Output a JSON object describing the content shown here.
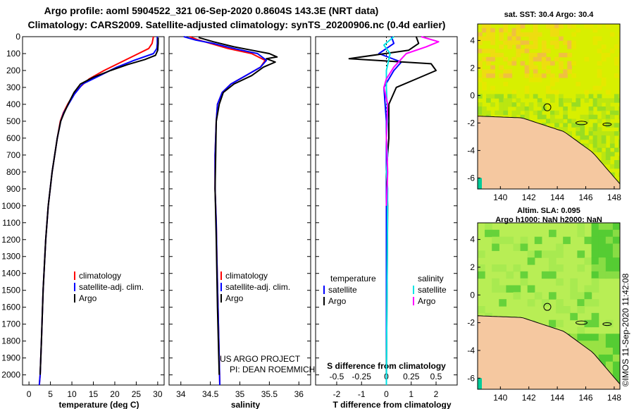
{
  "header": {
    "title_line1": "Argo profile: aoml 5904522_321 06-Sep-2020 0.8604S 143.3E (NRT data)",
    "title_line2": "Climatology: CARS2009. Satellite-adjusted climatology: synTS_20200906.nc (0.4d earlier)"
  },
  "colors": {
    "climatology": "#ff0000",
    "satellite": "#0000ff",
    "argo": "#000000",
    "salinity_satellite": "#00e5e5",
    "salinity_argo": "#ff00ff",
    "land": "#f5c8a0",
    "sea_warm": "#d8ef00",
    "sea_green": "#55cc33",
    "sea_cyan": "#00cc99"
  },
  "credits": {
    "line1": "US ARGO PROJECT",
    "line2": "PI: DEAN ROEMMICH",
    "imos": "©IMOS 11-Sep-2020 11:42:08"
  },
  "chart_data": [
    {
      "type": "line",
      "id": "temperature",
      "xlabel": "temperature (deg C)",
      "ylabel": "",
      "xlim": [
        -1.5,
        31.5
      ],
      "ylim": [
        2060,
        0
      ],
      "xticks": [
        0,
        5,
        10,
        15,
        20,
        25,
        30
      ],
      "xticklabels": [
        "0",
        "5",
        "10",
        "15",
        "20",
        "25",
        "30"
      ],
      "yticks": [
        0,
        100,
        200,
        300,
        400,
        500,
        600,
        700,
        800,
        900,
        1000,
        1100,
        1200,
        1300,
        1400,
        1500,
        1600,
        1700,
        1800,
        1900,
        2000
      ],
      "legend": [
        "climatology",
        "satellite-adj. clim.",
        "Argo"
      ],
      "legend_loc": "lower-right",
      "series": [
        {
          "name": "climatology",
          "color_key": "climatology",
          "x": [
            29.0,
            28.7,
            27.9,
            25.5,
            21.5,
            17.5,
            14.0,
            11.8,
            10.2,
            9.0,
            8.0,
            7.3,
            6.6,
            5.4,
            4.5,
            3.9,
            3.3,
            2.9,
            2.6,
            2.4
          ],
          "depth": [
            0,
            40,
            70,
            100,
            150,
            200,
            250,
            300,
            350,
            400,
            450,
            500,
            600,
            800,
            1000,
            1200,
            1500,
            1800,
            2000,
            2060
          ]
        },
        {
          "name": "satellite-adj. clim.",
          "color_key": "satellite",
          "x": [
            29.9,
            29.9,
            29.8,
            29.0,
            24.5,
            20.5,
            16.5,
            12.5,
            10.6,
            9.2,
            8.1,
            7.4,
            6.6,
            5.4,
            4.5,
            3.9,
            3.3,
            2.9,
            2.6,
            2.4
          ],
          "depth": [
            0,
            40,
            70,
            100,
            140,
            180,
            230,
            280,
            340,
            400,
            450,
            500,
            600,
            800,
            1000,
            1200,
            1500,
            1800,
            2000,
            2060
          ]
        },
        {
          "name": "Argo",
          "color_key": "argo",
          "x": [
            30.1,
            30.1,
            30.0,
            29.5,
            27.0,
            23.0,
            19.0,
            15.0,
            12.0,
            10.5,
            9.3,
            8.2,
            7.4,
            6.6,
            5.4,
            4.5,
            3.9,
            3.3,
            2.9,
            2.6
          ],
          "depth": [
            5,
            40,
            80,
            110,
            135,
            165,
            200,
            240,
            280,
            330,
            390,
            450,
            500,
            600,
            800,
            1000,
            1200,
            1500,
            1800,
            2000
          ]
        }
      ]
    },
    {
      "type": "line",
      "id": "salinity",
      "xlabel": "salinity",
      "ylabel": "",
      "xlim": [
        33.8,
        36.2
      ],
      "ylim": [
        2060,
        0
      ],
      "xticks": [
        34,
        34.5,
        35,
        35.5,
        36
      ],
      "xticklabels": [
        "34",
        "34.5",
        "35",
        "35.5",
        "36"
      ],
      "legend": [
        "climatology",
        "satellite-adj. clim.",
        "Argo"
      ],
      "legend_loc": "lower-right",
      "series": [
        {
          "name": "climatology",
          "color_key": "climatology",
          "x": [
            34.15,
            34.3,
            34.5,
            34.8,
            35.2,
            35.43,
            35.35,
            35.1,
            34.85,
            34.7,
            34.62,
            34.6,
            34.58,
            34.58,
            34.6,
            34.61,
            34.63,
            34.65,
            34.66
          ],
          "depth": [
            0,
            20,
            40,
            70,
            100,
            140,
            180,
            230,
            280,
            330,
            400,
            500,
            700,
            900,
            1100,
            1300,
            1600,
            1900,
            2060
          ]
        },
        {
          "name": "satellite-adj. clim.",
          "color_key": "satellite",
          "x": [
            34.05,
            34.25,
            34.55,
            34.9,
            35.3,
            35.45,
            35.35,
            35.1,
            34.85,
            34.7,
            34.62,
            34.6,
            34.58,
            34.58,
            34.6,
            34.61,
            34.63,
            34.65,
            34.66
          ],
          "depth": [
            0,
            20,
            40,
            70,
            100,
            140,
            180,
            230,
            280,
            330,
            400,
            500,
            700,
            900,
            1100,
            1300,
            1600,
            1900,
            2060
          ]
        },
        {
          "name": "Argo",
          "color_key": "argo",
          "x": [
            34.3,
            34.55,
            34.9,
            35.2,
            35.5,
            35.63,
            35.45,
            35.6,
            35.4,
            35.2,
            34.9,
            34.72,
            34.65,
            34.6,
            34.59,
            34.58,
            34.6,
            34.62,
            34.65
          ],
          "depth": [
            5,
            30,
            60,
            80,
            100,
            120,
            130,
            150,
            180,
            230,
            280,
            330,
            400,
            500,
            700,
            900,
            1200,
            1600,
            2000
          ]
        }
      ]
    },
    {
      "type": "line",
      "id": "difference",
      "xlabel": "T difference from climatology",
      "xlabel2": "S difference from climatology",
      "ylabel": "",
      "xlim": [
        -2.85,
        2.85
      ],
      "ylim": [
        2060,
        0
      ],
      "xticks": [
        -2,
        -1,
        0,
        1,
        2
      ],
      "xticklabels": [
        "-2",
        "-1",
        "0",
        "1",
        "2"
      ],
      "s_tick_positions": [
        -2,
        -1,
        0,
        1,
        2
      ],
      "s_ticklabels": [
        "-0.5",
        "-0.25",
        "0",
        "0.25",
        "0.5"
      ],
      "legend_headers": [
        "temperature",
        "salinity"
      ],
      "legend": [
        "satellite",
        "Argo",
        "satellite",
        "Argo"
      ],
      "legend_loc": "lower-center",
      "series": [
        {
          "name": "T satellite",
          "color_key": "satellite",
          "x": [
            0.2,
            0.3,
            0.0,
            -0.3,
            0.6,
            0.3,
            0.1,
            -0.1,
            -0.05,
            0.0,
            0.0,
            0.0,
            0.0,
            0.0
          ],
          "depth": [
            0,
            40,
            70,
            100,
            150,
            200,
            250,
            300,
            400,
            500,
            700,
            1000,
            1500,
            2060
          ]
        },
        {
          "name": "T Argo",
          "color_key": "argo",
          "x": [
            1.2,
            1.3,
            0.9,
            -1.5,
            1.8,
            2.0,
            1.2,
            0.4,
            0.1,
            0.1,
            0.0,
            0.05,
            0.0
          ],
          "depth": [
            0,
            40,
            80,
            130,
            160,
            200,
            250,
            300,
            400,
            600,
            800,
            1000,
            2000
          ]
        },
        {
          "name": "S satellite",
          "color_key": "salinity_satellite",
          "x": [
            0.3,
            -0.1,
            0.15,
            0.0,
            0.0,
            0.05,
            0.0,
            0.05,
            0.0,
            0.05,
            0.0
          ],
          "depth": [
            0,
            50,
            100,
            200,
            300,
            500,
            600,
            700,
            800,
            900,
            2060
          ]
        },
        {
          "name": "S Argo",
          "color_key": "salinity_argo",
          "x": [
            1.4,
            2.1,
            1.6,
            0.8,
            0.3,
            0.0,
            -0.1,
            0.05,
            0.0,
            0.05,
            0.0
          ],
          "depth": [
            0,
            30,
            60,
            100,
            180,
            250,
            300,
            400,
            600,
            800,
            1000
          ]
        }
      ]
    },
    {
      "type": "heatmap",
      "id": "sst_map",
      "title": "sat. SST: 30.4 Argo: 30.4",
      "xlim": [
        138.4,
        148.4
      ],
      "ylim": [
        -6.8,
        5.2
      ],
      "xticks": [
        140,
        142,
        144,
        146,
        148
      ],
      "xticklabels": [
        "140",
        "142",
        "144",
        "146",
        "148"
      ],
      "yticks": [
        4,
        2,
        0,
        -2,
        -4,
        -6
      ],
      "yticklabels": [
        "4",
        "2",
        "0",
        "-2",
        "-4",
        "-6"
      ],
      "profile_location": [
        143.3,
        -0.86
      ]
    },
    {
      "type": "heatmap",
      "id": "sla_map",
      "title": "Altim. SLA: 0.095",
      "subtitle": "Argo h1000: NaN h2000: NaN",
      "xlim": [
        138.4,
        148.4
      ],
      "ylim": [
        -6.8,
        5.2
      ],
      "xticks": [
        140,
        142,
        144,
        146,
        148
      ],
      "xticklabels": [
        "140",
        "142",
        "144",
        "146",
        "148"
      ],
      "yticks": [
        4,
        2,
        0,
        -2,
        -4,
        -6
      ],
      "yticklabels": [
        "4",
        "2",
        "0",
        "-2",
        "-4",
        "-6"
      ],
      "profile_location": [
        143.3,
        -0.86
      ]
    }
  ]
}
